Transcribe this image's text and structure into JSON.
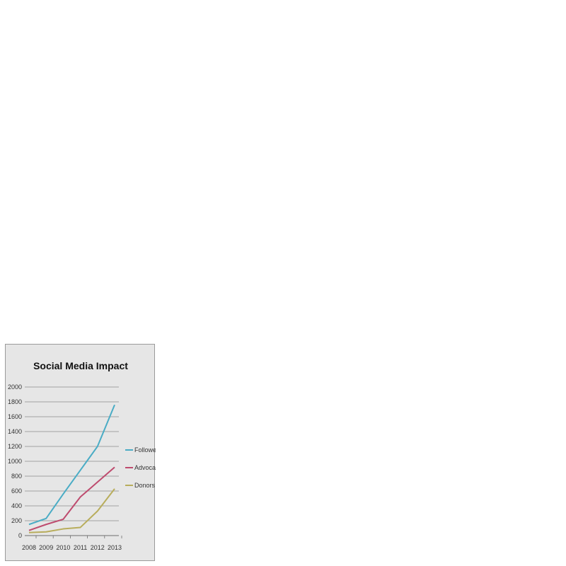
{
  "chart_data": {
    "type": "line",
    "title": "Social Media Impact",
    "xlabel": "",
    "ylabel": "",
    "categories": [
      "2008",
      "2009",
      "2010",
      "2011",
      "2012",
      "2013"
    ],
    "ylim": [
      0,
      2000
    ],
    "yticks": [
      "0",
      "200",
      "400",
      "600",
      "800",
      "1000",
      "1200",
      "1400",
      "1600",
      "1800",
      "2000"
    ],
    "grid": true,
    "legend_position": "right",
    "series": [
      {
        "name": "Followers",
        "color": "#4aacc5",
        "values": [
          150,
          230,
          560,
          880,
          1200,
          1760
        ]
      },
      {
        "name": "Advocates",
        "color": "#be4b6e",
        "values": [
          70,
          150,
          220,
          520,
          720,
          920
        ]
      },
      {
        "name": "Donors",
        "color": "#b8ad5c",
        "values": [
          40,
          50,
          90,
          110,
          330,
          630
        ]
      }
    ]
  }
}
